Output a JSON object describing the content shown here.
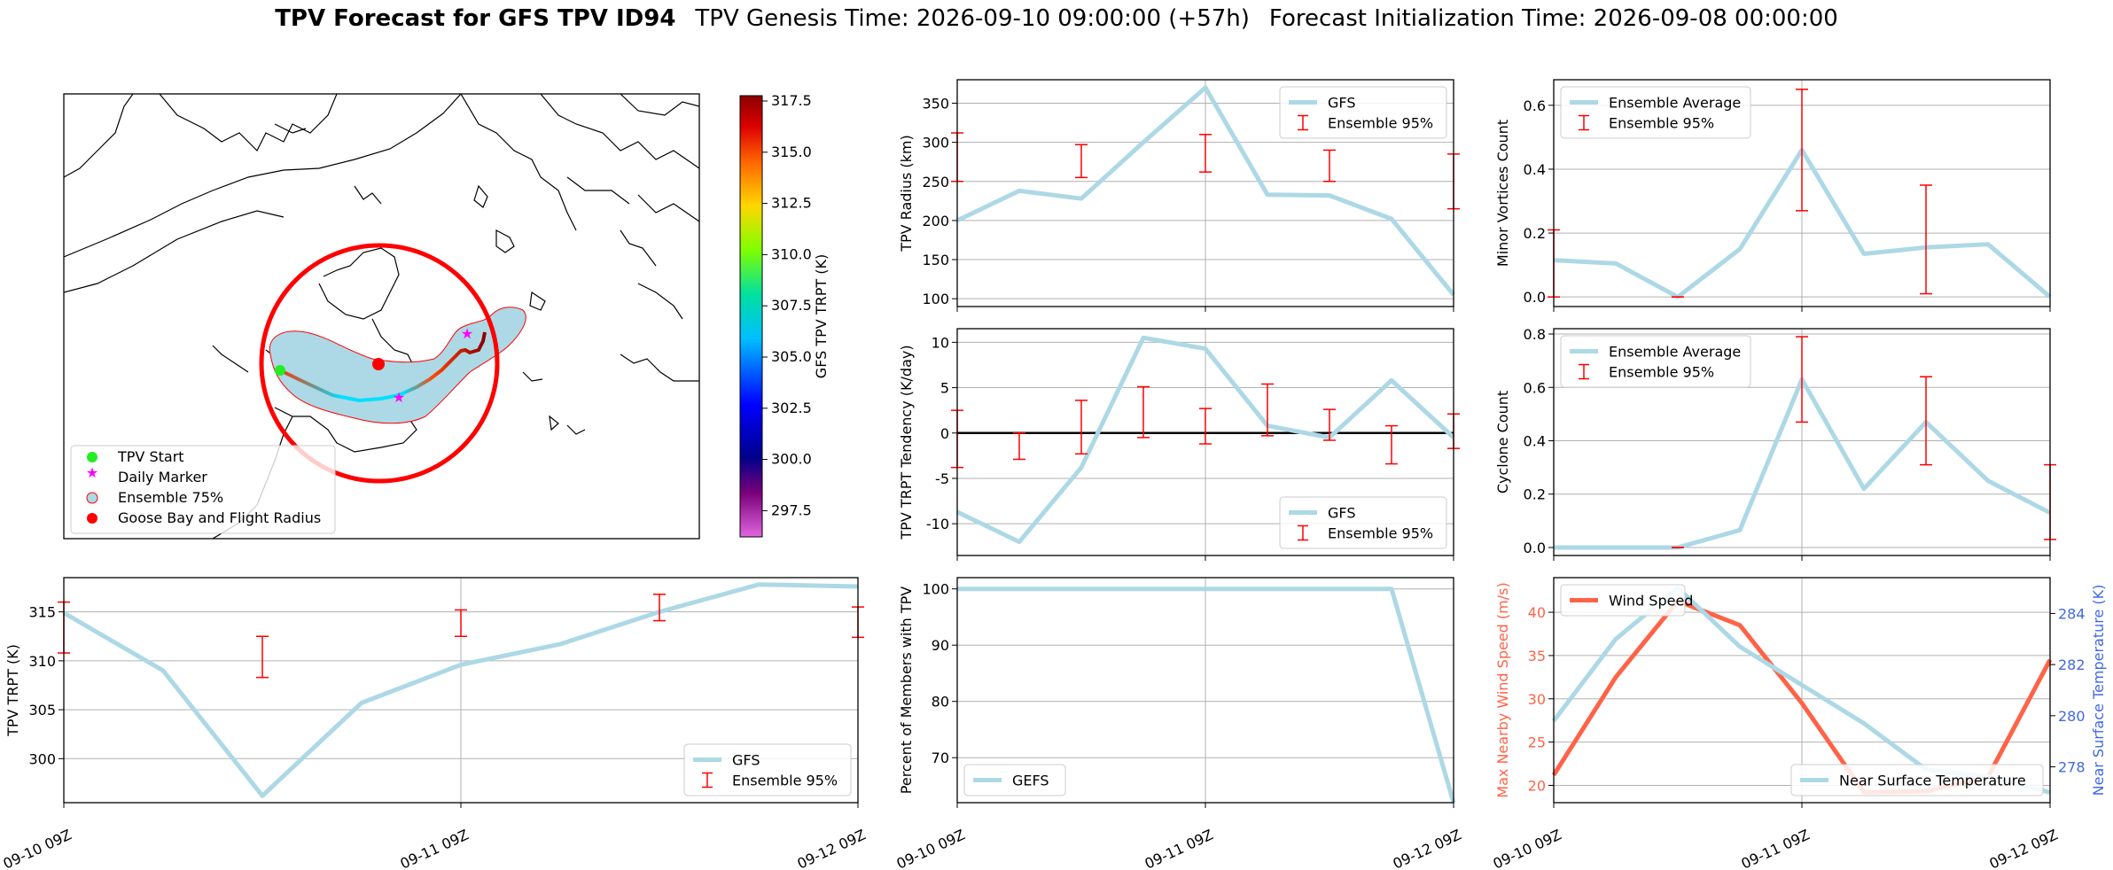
{
  "header": {
    "title_bold": "TPV Forecast for GFS TPV ID94",
    "genesis": "TPV Genesis Time: 2026-09-10 09:00:00 (+57h)",
    "init": "Forecast Initialization Time: 2026-09-08 00:00:00"
  },
  "colors": {
    "gfs": "#add8e6",
    "ensemble": "#ff0000",
    "wind": "#ff6347",
    "temp_axis": "#4169e1",
    "zero_line": "#000000"
  },
  "map": {
    "colorbar_label": "GFS TPV TRPT (K)",
    "colorbar_ticks": [
      "317.5",
      "315.0",
      "312.5",
      "310.0",
      "307.5",
      "305.0",
      "302.5",
      "300.0",
      "297.5"
    ],
    "legend": [
      "TPV Start",
      "Daily Marker",
      "Ensemble 75%",
      "Goose Bay and Flight Radius"
    ]
  },
  "chart_data": [
    {
      "type": "line",
      "id": "trpt",
      "ylabel": "TPV TRPT (K)",
      "ylim": [
        295.5,
        318.5
      ],
      "yticks": [
        300,
        305,
        310,
        315
      ],
      "x_ticks": [
        "09-10 09Z",
        "09-11 09Z",
        "09-12 09Z"
      ],
      "series": [
        {
          "name": "GFS",
          "values": [
            314.9,
            309.0,
            296.2,
            305.7,
            309.6,
            311.7,
            315.0,
            317.8,
            317.6
          ]
        }
      ],
      "errorbars": {
        "name": "Ensemble 95%",
        "x": [
          0,
          2,
          4,
          6,
          8
        ],
        "lo": [
          310.8,
          308.3,
          312.5,
          314.1,
          312.4
        ],
        "hi": [
          316.0,
          312.5,
          315.2,
          316.8,
          315.5
        ]
      },
      "legend": "lower right"
    },
    {
      "type": "line",
      "id": "radius",
      "ylabel": "TPV Radius (km)",
      "ylim": [
        90,
        380
      ],
      "yticks": [
        100,
        150,
        200,
        250,
        300,
        350
      ],
      "series": [
        {
          "name": "GFS",
          "values": [
            200,
            238,
            228,
            300,
            370,
            233,
            232,
            202,
            105
          ]
        }
      ],
      "errorbars": {
        "name": "Ensemble 95%",
        "x": [
          0,
          2,
          4,
          6,
          8
        ],
        "lo": [
          250,
          255,
          262,
          250,
          215
        ],
        "hi": [
          312,
          297,
          310,
          290,
          285
        ]
      },
      "legend": "upper right"
    },
    {
      "type": "line",
      "id": "tendency",
      "ylabel": "TPV TRPT Tendency (K/day)",
      "ylim": [
        -13.5,
        11.5
      ],
      "yticks": [
        -10,
        -5,
        0,
        5,
        10
      ],
      "series": [
        {
          "name": "GFS",
          "values": [
            -8.7,
            -12.0,
            -3.8,
            10.5,
            9.3,
            0.8,
            -0.5,
            5.8,
            -0.5
          ]
        }
      ],
      "errorbars": {
        "name": "Ensemble 95%",
        "x": [
          0,
          1,
          2,
          3,
          4,
          5,
          6,
          7,
          8
        ],
        "lo": [
          -3.8,
          -2.9,
          -2.3,
          -0.5,
          -1.2,
          -0.3,
          -0.8,
          -3.4,
          -1.7
        ],
        "hi": [
          2.5,
          0.0,
          3.6,
          5.1,
          2.7,
          5.4,
          2.6,
          0.8,
          2.1
        ]
      },
      "zero_line": true,
      "legend": "lower right"
    },
    {
      "type": "line",
      "id": "percent",
      "ylabel": "Percent of Members with TPV",
      "ylim": [
        62,
        102
      ],
      "yticks": [
        70,
        80,
        90,
        100
      ],
      "series": [
        {
          "name": "GEFS",
          "values": [
            100,
            100,
            100,
            100,
            100,
            100,
            100,
            100,
            62
          ]
        }
      ],
      "legend": "lower left"
    },
    {
      "type": "line",
      "id": "minor",
      "ylabel": "Minor Vortices Count",
      "ylim": [
        -0.03,
        0.68
      ],
      "yticks": [
        0.0,
        0.2,
        0.4,
        0.6
      ],
      "series": [
        {
          "name": "Ensemble Average",
          "values": [
            0.115,
            0.105,
            0.0,
            0.15,
            0.46,
            0.135,
            0.155,
            0.165,
            0.0
          ]
        }
      ],
      "errorbars": {
        "name": "Ensemble 95%",
        "x": [
          0,
          2,
          4,
          6
        ],
        "lo": [
          0.0,
          0.0,
          0.27,
          0.01
        ],
        "hi": [
          0.21,
          0.0,
          0.65,
          0.35
        ]
      },
      "legend": "upper left"
    },
    {
      "type": "line",
      "id": "cyclone",
      "ylabel": "Cyclone Count",
      "ylim": [
        -0.03,
        0.82
      ],
      "yticks": [
        0.0,
        0.2,
        0.4,
        0.6,
        0.8
      ],
      "series": [
        {
          "name": "Ensemble Average",
          "values": [
            0.0,
            0.0,
            0.0,
            0.065,
            0.63,
            0.22,
            0.47,
            0.25,
            0.13
          ]
        }
      ],
      "errorbars": {
        "name": "Ensemble 95%",
        "x": [
          2,
          4,
          6,
          8
        ],
        "lo": [
          0.0,
          0.47,
          0.31,
          0.03
        ],
        "hi": [
          0.0,
          0.79,
          0.64,
          0.31
        ]
      },
      "legend": "upper left"
    },
    {
      "type": "line",
      "id": "wind",
      "ylabel": "Max Nearby Wind Speed (m/s)",
      "ylim": [
        18,
        44
      ],
      "yticks": [
        20,
        25,
        30,
        35,
        40
      ],
      "y2label": "Near Surface Temperature (K)",
      "y2lim": [
        276.6,
        285.4
      ],
      "y2ticks": [
        278,
        280,
        282,
        284
      ],
      "series": [
        {
          "name": "Wind Speed",
          "axis": "left",
          "values": [
            21.2,
            32.5,
            41.3,
            38.5,
            29.5,
            19.2,
            19.3,
            21.0,
            34.5
          ]
        },
        {
          "name": "Near Surface Temperature",
          "axis": "right",
          "values": [
            279.8,
            283.0,
            285.0,
            282.7,
            281.2,
            279.7,
            277.9,
            277.6,
            277.0
          ]
        }
      ]
    }
  ]
}
